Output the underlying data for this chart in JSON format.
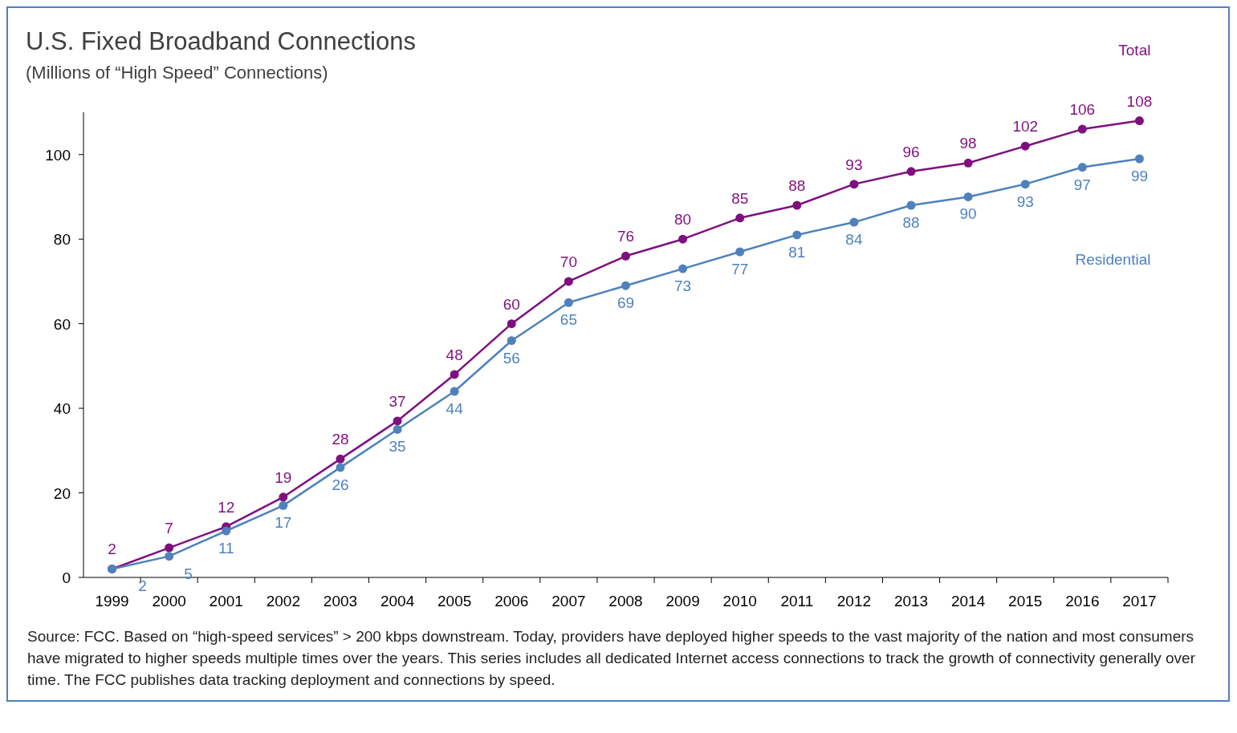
{
  "chart_data": {
    "type": "line",
    "title": "U.S. Fixed Broadband Connections",
    "subtitle": "(Millions of “High Speed” Connections)",
    "categories": [
      "1999",
      "2000",
      "2001",
      "2002",
      "2003",
      "2004",
      "2005",
      "2006",
      "2007",
      "2008",
      "2009",
      "2010",
      "2011",
      "2012",
      "2013",
      "2014",
      "2015",
      "2016",
      "2017"
    ],
    "series": [
      {
        "name": "Total",
        "color": "#7f0f7e",
        "values": [
          2,
          7,
          12,
          19,
          28,
          37,
          48,
          60,
          70,
          76,
          80,
          85,
          88,
          93,
          96,
          98,
          102,
          106,
          108
        ]
      },
      {
        "name": "Residential",
        "color": "#4f81bd",
        "values": [
          2,
          5,
          11,
          17,
          26,
          35,
          44,
          56,
          65,
          69,
          73,
          77,
          81,
          84,
          88,
          90,
          93,
          97,
          99
        ]
      }
    ],
    "ylim": [
      0,
      110
    ],
    "yticks": [
      0,
      20,
      40,
      60,
      80,
      100
    ],
    "grid": false,
    "marker": "circle",
    "line_style": "solid",
    "data_labels": true,
    "annotations": [
      "Source:  FCC. Based on “high-speed services” > 200 kbps downstream. Today, providers have deployed higher speeds to the vast majority of the nation  and most consumers have migrated to higher speeds multiple times over the years. This series includes all dedicated Internet access connections to track the growth of connectivity generally over time. The FCC publishes data tracking deployment and connections by speed."
    ]
  }
}
